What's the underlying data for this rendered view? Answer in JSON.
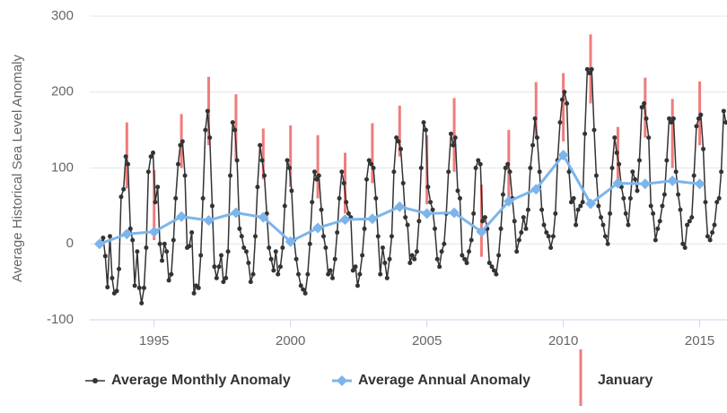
{
  "chart_data": {
    "type": "line",
    "y_axis_label": "Average Historical Sea Level Anomaly",
    "xlim": [
      1992.64,
      2016.0
    ],
    "ylim": [
      -100,
      300
    ],
    "xticks": [
      1995,
      2000,
      2005,
      2010,
      2015
    ],
    "yticks": [
      -100,
      0,
      100,
      200,
      300
    ],
    "grid": true,
    "legend": "bottom",
    "series": [
      {
        "name": "Average Monthly Anomaly",
        "color": "#333333",
        "x": [
          1993.04,
          1993.13,
          1993.21,
          1993.29,
          1993.38,
          1993.46,
          1993.54,
          1993.63,
          1993.71,
          1993.79,
          1993.88,
          1993.96,
          1994.04,
          1994.13,
          1994.21,
          1994.29,
          1994.38,
          1994.46,
          1994.54,
          1994.63,
          1994.71,
          1994.79,
          1994.88,
          1994.96,
          1995.04,
          1995.13,
          1995.21,
          1995.29,
          1995.38,
          1995.46,
          1995.54,
          1995.63,
          1995.71,
          1995.79,
          1995.88,
          1995.96,
          1996.04,
          1996.13,
          1996.21,
          1996.29,
          1996.38,
          1996.46,
          1996.54,
          1996.63,
          1996.71,
          1996.79,
          1996.88,
          1996.96,
          1997.04,
          1997.13,
          1997.21,
          1997.29,
          1997.38,
          1997.46,
          1997.54,
          1997.63,
          1997.71,
          1997.79,
          1997.88,
          1997.96,
          1998.04,
          1998.13,
          1998.21,
          1998.29,
          1998.38,
          1998.46,
          1998.54,
          1998.63,
          1998.71,
          1998.79,
          1998.88,
          1998.96,
          1999.04,
          1999.13,
          1999.21,
          1999.29,
          1999.38,
          1999.46,
          1999.54,
          1999.63,
          1999.71,
          1999.79,
          1999.88,
          1999.96,
          2000.04,
          2000.13,
          2000.21,
          2000.29,
          2000.38,
          2000.46,
          2000.54,
          2000.63,
          2000.71,
          2000.79,
          2000.88,
          2000.96,
          2001.04,
          2001.13,
          2001.21,
          2001.29,
          2001.38,
          2001.46,
          2001.54,
          2001.63,
          2001.71,
          2001.79,
          2001.88,
          2001.96,
          2002.04,
          2002.13,
          2002.21,
          2002.29,
          2002.38,
          2002.46,
          2002.54,
          2002.63,
          2002.71,
          2002.79,
          2002.88,
          2002.96,
          2003.04,
          2003.13,
          2003.21,
          2003.29,
          2003.38,
          2003.46,
          2003.54,
          2003.63,
          2003.71,
          2003.79,
          2003.88,
          2003.96,
          2004.04,
          2004.13,
          2004.21,
          2004.29,
          2004.38,
          2004.46,
          2004.54,
          2004.63,
          2004.71,
          2004.79,
          2004.88,
          2004.96,
          2005.04,
          2005.13,
          2005.21,
          2005.29,
          2005.38,
          2005.46,
          2005.54,
          2005.63,
          2005.71,
          2005.79,
          2005.88,
          2005.96,
          2006.04,
          2006.13,
          2006.21,
          2006.29,
          2006.38,
          2006.46,
          2006.54,
          2006.63,
          2006.71,
          2006.79,
          2006.88,
          2006.96,
          2007.04,
          2007.13,
          2007.21,
          2007.29,
          2007.38,
          2007.46,
          2007.54,
          2007.63,
          2007.71,
          2007.79,
          2007.88,
          2007.96,
          2008.04,
          2008.13,
          2008.21,
          2008.29,
          2008.38,
          2008.46,
          2008.54,
          2008.63,
          2008.71,
          2008.79,
          2008.88,
          2008.96,
          2009.04,
          2009.13,
          2009.21,
          2009.29,
          2009.38,
          2009.46,
          2009.54,
          2009.63,
          2009.71,
          2009.79,
          2009.88,
          2009.96,
          2010.04,
          2010.13,
          2010.21,
          2010.29,
          2010.38,
          2010.46,
          2010.54,
          2010.63,
          2010.71,
          2010.79,
          2010.88,
          2010.96,
          2011.04,
          2011.13,
          2011.21,
          2011.29,
          2011.38,
          2011.46,
          2011.54,
          2011.63,
          2011.71,
          2011.79,
          2011.88,
          2011.96,
          2012.04,
          2012.13,
          2012.21,
          2012.29,
          2012.38,
          2012.46,
          2012.54,
          2012.63,
          2012.71,
          2012.79,
          2012.88,
          2012.96,
          2013.04,
          2013.13,
          2013.21,
          2013.29,
          2013.38,
          2013.46,
          2013.54,
          2013.63,
          2013.71,
          2013.79,
          2013.88,
          2013.96,
          2014.04,
          2014.13,
          2014.21,
          2014.29,
          2014.38,
          2014.46,
          2014.54,
          2014.63,
          2014.71,
          2014.79,
          2014.88,
          2014.96,
          2015.04,
          2015.13,
          2015.21,
          2015.29,
          2015.38,
          2015.46,
          2015.54,
          2015.63,
          2015.71,
          2015.79,
          2015.88,
          2015.96
        ],
        "values": [
          0,
          8,
          -16,
          -57,
          10,
          -45,
          -65,
          -62,
          -33,
          62,
          72,
          115,
          105,
          20,
          5,
          -55,
          -10,
          -58,
          -78,
          -58,
          -5,
          95,
          115,
          120,
          55,
          75,
          0,
          -22,
          0,
          -10,
          -48,
          -40,
          5,
          60,
          105,
          130,
          135,
          90,
          -5,
          -3,
          15,
          -65,
          -55,
          -58,
          -15,
          60,
          150,
          175,
          140,
          50,
          -30,
          -45,
          -30,
          -15,
          -50,
          -45,
          -10,
          90,
          160,
          150,
          110,
          20,
          10,
          -5,
          -10,
          -25,
          -50,
          -40,
          10,
          75,
          130,
          110,
          90,
          40,
          -5,
          -20,
          -35,
          -10,
          -40,
          -30,
          -5,
          50,
          110,
          100,
          70,
          5,
          -20,
          -40,
          -55,
          -60,
          -65,
          -40,
          0,
          55,
          95,
          85,
          90,
          45,
          10,
          -5,
          -40,
          -35,
          -45,
          -20,
          15,
          60,
          95,
          80,
          55,
          40,
          35,
          -35,
          -30,
          -55,
          -40,
          -15,
          20,
          85,
          110,
          105,
          100,
          60,
          10,
          -40,
          -5,
          -25,
          -45,
          -20,
          10,
          95,
          140,
          135,
          125,
          80,
          35,
          25,
          -25,
          -15,
          -20,
          -10,
          30,
          100,
          160,
          150,
          75,
          55,
          45,
          20,
          -20,
          -30,
          -10,
          0,
          40,
          95,
          145,
          130,
          140,
          70,
          60,
          -15,
          -20,
          -25,
          -10,
          5,
          40,
          100,
          110,
          105,
          30,
          35,
          20,
          -25,
          -30,
          -35,
          -40,
          -15,
          20,
          65,
          100,
          105,
          95,
          60,
          30,
          -10,
          5,
          15,
          35,
          20,
          45,
          100,
          130,
          165,
          140,
          95,
          45,
          25,
          15,
          10,
          -5,
          10,
          40,
          110,
          160,
          190,
          200,
          185,
          95,
          55,
          60,
          25,
          45,
          50,
          55,
          145,
          230,
          225,
          230,
          150,
          90,
          50,
          35,
          25,
          10,
          0,
          40,
          100,
          140,
          120,
          105,
          75,
          60,
          40,
          25,
          60,
          95,
          85,
          70,
          110,
          180,
          185,
          165,
          140,
          50,
          40,
          5,
          20,
          30,
          50,
          65,
          110,
          165,
          160,
          165,
          95,
          65,
          45,
          0,
          -5,
          25,
          30,
          35,
          90,
          155,
          165,
          170,
          125,
          55,
          10,
          5,
          15,
          25,
          55,
          60,
          95,
          175,
          160
        ]
      },
      {
        "name": "Average Annual Anomaly",
        "color": "#7cb5ec",
        "x": [
          1993,
          1994,
          1995,
          1996,
          1997,
          1998,
          1999,
          2000,
          2001,
          2002,
          2003,
          2004,
          2005,
          2006,
          2007,
          2008,
          2009,
          2010,
          2011,
          2012,
          2013,
          2014,
          2015
        ],
        "values": [
          0,
          13,
          16,
          36,
          31,
          41,
          35,
          3,
          21,
          32,
          33,
          49,
          40,
          41,
          16,
          56,
          72,
          117,
          53,
          80,
          79,
          83,
          79
        ]
      }
    ],
    "ranges": {
      "name": "January",
      "color": "#f07c7c",
      "x": [
        1994,
        1995,
        1996,
        1997,
        1998,
        1999,
        2000,
        2001,
        2002,
        2003,
        2004,
        2005,
        2006,
        2007,
        2008,
        2009,
        2010,
        2011,
        2012,
        2013,
        2014,
        2015
      ],
      "low": [
        73,
        5,
        100,
        130,
        110,
        85,
        75,
        60,
        40,
        80,
        115,
        52,
        95,
        -17,
        60,
        140,
        135,
        185,
        80,
        140,
        100,
        130
      ],
      "high": [
        160,
        97,
        171,
        220,
        197,
        152,
        156,
        143,
        120,
        159,
        182,
        143,
        192,
        78,
        150,
        213,
        225,
        276,
        154,
        219,
        191,
        214
      ]
    }
  }
}
